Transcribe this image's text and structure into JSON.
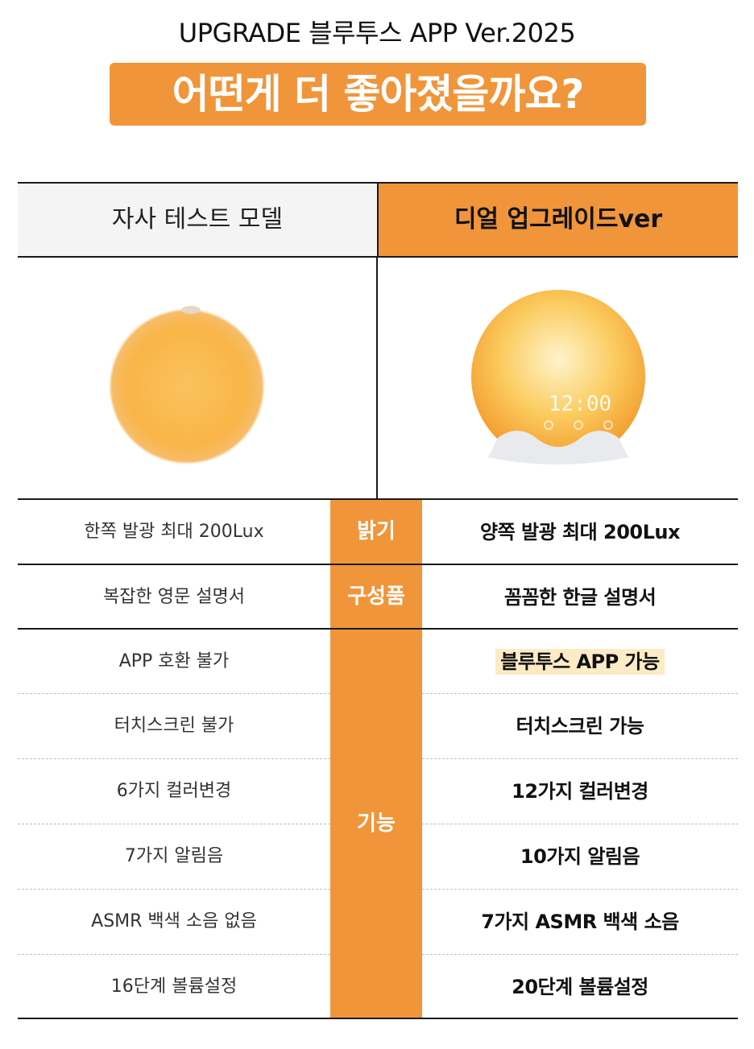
{
  "headline": "UPGRADE 블루투스 APP Ver.2025",
  "title": "어떤게 더 좋아졌을까요?",
  "columns": {
    "left": "자사 테스트 모델",
    "right": "디얼 업그레이드ver"
  },
  "clock_display": "12:00",
  "categories": {
    "brightness": "밝기",
    "components": "구성품",
    "features": "기능"
  },
  "rows": [
    {
      "left": "한쪽 발광 최대 200Lux",
      "right": "양쪽 발광 최대 200Lux"
    },
    {
      "left": "복잡한 영문 설명서",
      "right": "꼼꼼한 한글 설명서"
    },
    {
      "left": "APP 호환 불가",
      "right": "블루투스 APP 가능"
    },
    {
      "left": "터치스크린 불가",
      "right": "터치스크린 가능"
    },
    {
      "left": "6가지 컬러변경",
      "right": "12가지 컬러변경"
    },
    {
      "left": "7가지 알림음",
      "right": "10가지 알림음"
    },
    {
      "left": "ASMR 백색 소음 없음",
      "right": "7가지 ASMR 백색 소음"
    },
    {
      "left": "16단계 볼륨설정",
      "right": "20단계 볼륨설정"
    }
  ],
  "colors": {
    "accent": "#F0953A",
    "header_gray": "#F4F4F4",
    "highlight": "#FDEBC6"
  }
}
